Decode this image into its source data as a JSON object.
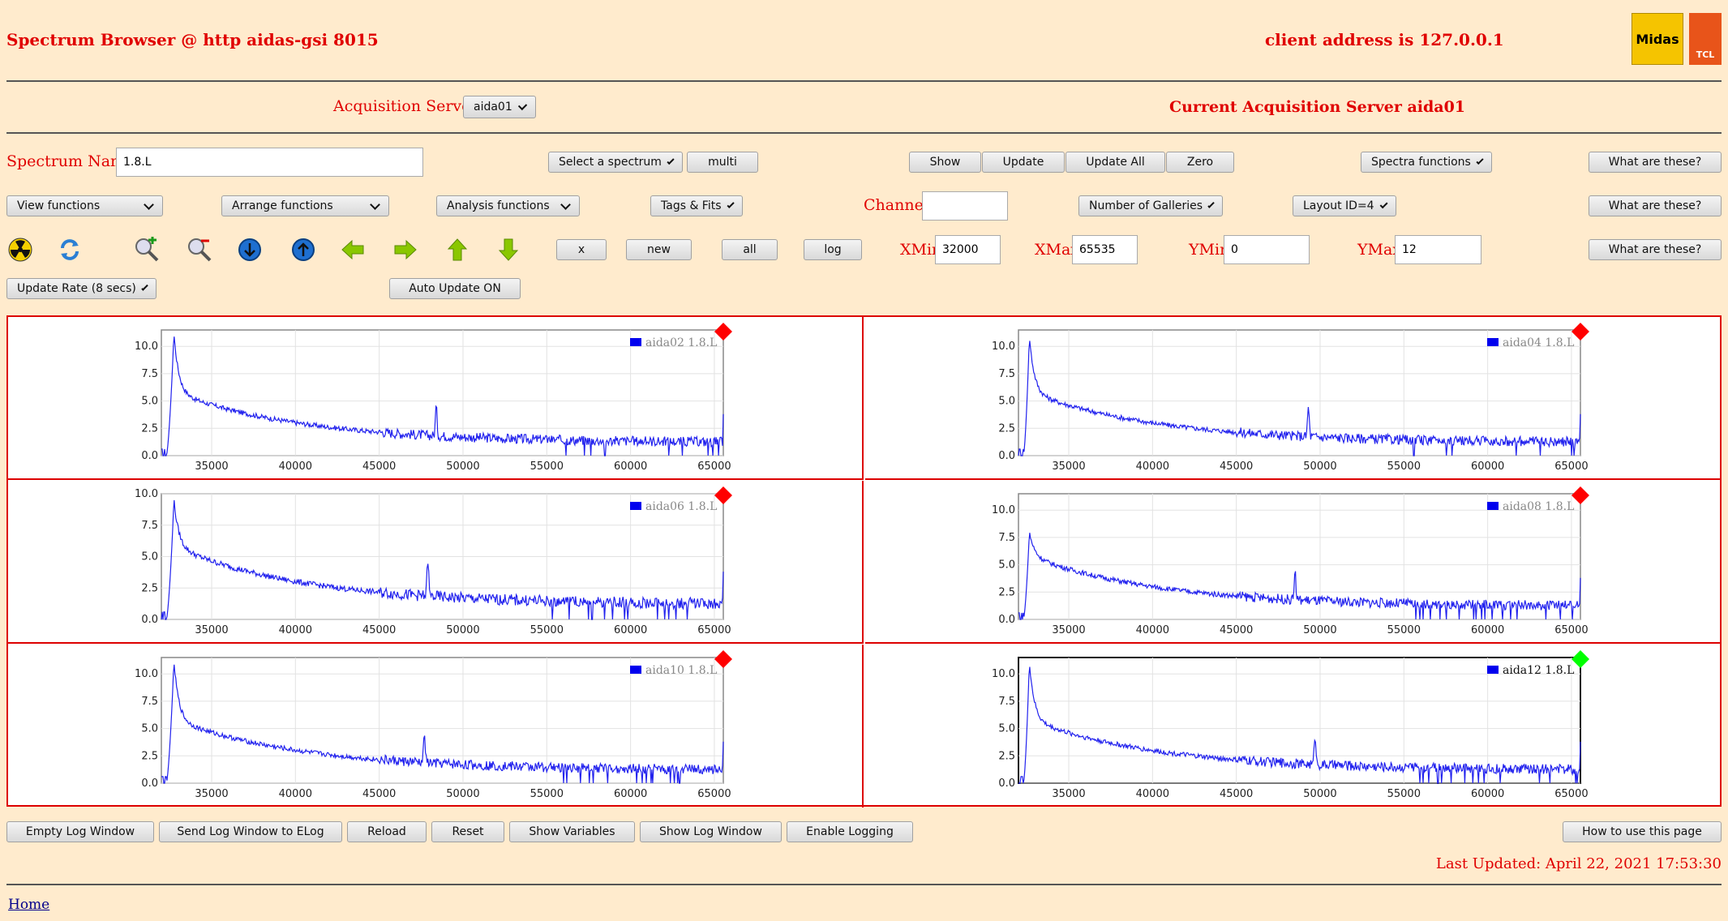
{
  "header": {
    "title": "Spectrum Browser @ http aidas-gsi 8015",
    "client_address": "client address is 127.0.0.1",
    "logo_text": "Midas",
    "logo2_text": "TCL"
  },
  "acq": {
    "label": "Acquisition Servers",
    "server_select": "aida01",
    "current": "Current Acquisition Server aida01"
  },
  "row1": {
    "spectrum_name_label": "Spectrum Name:",
    "spectrum_name_value": "1.8.L",
    "select_spectrum": "Select a spectrum",
    "multi": "multi",
    "show": "Show",
    "update": "Update",
    "update_all": "Update All",
    "zero": "Zero",
    "spectra_functions": "Spectra functions",
    "what": "What are these?"
  },
  "row2": {
    "view_functions": "View functions",
    "arrange_functions": "Arrange functions",
    "analysis_functions": "Analysis functions",
    "tags_fits": "Tags & Fits",
    "channel_label": "Channel:",
    "channel_value": "",
    "number_of_galleries": "Number of Galleries",
    "layout_id": "Layout ID=4",
    "what": "What are these?"
  },
  "row3": {
    "icons": [
      "radiation-icon",
      "refresh-icon",
      "zoom-in-icon",
      "zoom-out-icon",
      "arrow-down-circle-icon",
      "arrow-up-circle-icon",
      "arrow-left-icon",
      "arrow-right-icon",
      "arrow-up-icon",
      "arrow-down-icon"
    ],
    "x": "x",
    "new": "new",
    "all": "all",
    "log": "log",
    "xmin_label": "XMin",
    "xmin_value": "32000",
    "xmax_label": "XMax",
    "xmax_value": "65535",
    "ymin_label": "YMin",
    "ymin_value": "0",
    "ymax_label": "YMax",
    "ymax_value": "12",
    "what": "What are these?"
  },
  "row4": {
    "update_rate": "Update Rate (8 secs)",
    "auto_update": "Auto Update ON"
  },
  "chart_data": [
    {
      "type": "line",
      "legend": "aida02 1.8.L",
      "status_color": "#ff0000",
      "xlim": [
        32000,
        65535
      ],
      "xticks": [
        35000,
        40000,
        45000,
        50000,
        55000,
        60000,
        65000
      ],
      "yticks": [
        "0.0",
        "2.5",
        "5.0",
        "7.5",
        "10.0"
      ],
      "ylim": [
        0,
        11.5
      ],
      "peak_height": 11.2,
      "secondary_peak_x": 48400,
      "secondary_peak_height": 4.5,
      "tail_end_level": 1.2
    },
    {
      "type": "line",
      "legend": "aida04 1.8.L",
      "status_color": "#ff0000",
      "xlim": [
        32000,
        65535
      ],
      "xticks": [
        35000,
        40000,
        45000,
        50000,
        55000,
        60000,
        65000
      ],
      "yticks": [
        "0.0",
        "2.5",
        "5.0",
        "7.5",
        "10.0"
      ],
      "ylim": [
        0,
        11.5
      ],
      "peak_height": 11.0,
      "secondary_peak_x": 49300,
      "secondary_peak_height": 4.5,
      "tail_end_level": 1.2
    },
    {
      "type": "line",
      "legend": "aida06 1.8.L",
      "status_color": "#ff0000",
      "xlim": [
        32000,
        65535
      ],
      "xticks": [
        35000,
        40000,
        45000,
        50000,
        55000,
        60000,
        65000
      ],
      "yticks": [
        "0.0",
        "2.5",
        "5.0",
        "7.5",
        "10.0"
      ],
      "ylim": [
        0,
        10.0
      ],
      "peak_height": 9.5,
      "secondary_peak_x": 47900,
      "secondary_peak_height": 4.8,
      "tail_end_level": 1.2
    },
    {
      "type": "line",
      "legend": "aida08 1.8.L",
      "status_color": "#ff0000",
      "xlim": [
        32000,
        65535
      ],
      "xticks": [
        35000,
        40000,
        45000,
        50000,
        55000,
        60000,
        65000
      ],
      "yticks": [
        "0.0",
        "2.5",
        "5.0",
        "7.5",
        "10.0"
      ],
      "ylim": [
        0,
        11.5
      ],
      "peak_height": 8.0,
      "secondary_peak_x": 48500,
      "secondary_peak_height": 4.5,
      "tail_end_level": 1.2
    },
    {
      "type": "line",
      "legend": "aida10 1.8.L",
      "status_color": "#ff0000",
      "xlim": [
        32000,
        65535
      ],
      "xticks": [
        35000,
        40000,
        45000,
        50000,
        55000,
        60000,
        65000
      ],
      "yticks": [
        "0.0",
        "2.5",
        "5.0",
        "7.5",
        "10.0"
      ],
      "ylim": [
        0,
        11.5
      ],
      "peak_height": 11.2,
      "secondary_peak_x": 47700,
      "secondary_peak_height": 4.6,
      "tail_end_level": 1.2
    },
    {
      "type": "line",
      "legend": "aida12 1.8.L",
      "status_color": "#00ff00",
      "xlim": [
        32000,
        65535
      ],
      "xticks": [
        35000,
        40000,
        45000,
        50000,
        55000,
        60000,
        65000
      ],
      "yticks": [
        "0.0",
        "2.5",
        "5.0",
        "7.5",
        "10.0"
      ],
      "ylim": [
        0,
        11.5
      ],
      "peak_height": 11.2,
      "secondary_peak_x": 49700,
      "secondary_peak_height": 4.5,
      "tail_end_level": 1.2
    }
  ],
  "footer": {
    "empty_log": "Empty Log Window",
    "send_log": "Send Log Window to ELog",
    "reload": "Reload",
    "reset": "Reset",
    "show_variables": "Show Variables",
    "show_log": "Show Log Window",
    "enable_logging": "Enable Logging",
    "how_to": "How to use this page",
    "last_updated": "Last Updated: April 22, 2021 17:53:30",
    "home": "Home"
  }
}
